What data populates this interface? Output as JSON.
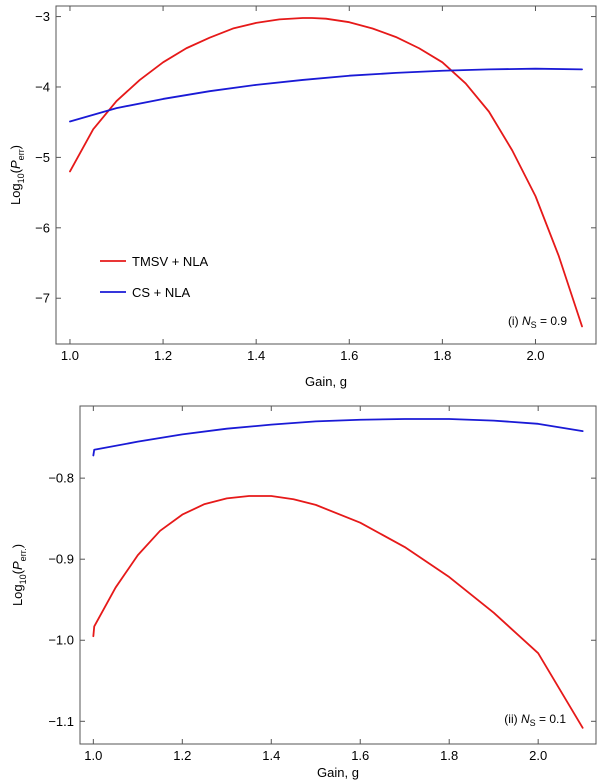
{
  "chart_data": [
    {
      "type": "line",
      "panel": "top",
      "xlabel": "Gain, g",
      "ylabel": {
        "base": "Log",
        "sub": "10",
        "paren_open": "(",
        "var": "P",
        "var_sub": "err",
        "paren_close": ")"
      },
      "xlim": [
        0.97,
        2.13
      ],
      "ylim": [
        -7.65,
        -2.85
      ],
      "xticks": [
        1.0,
        1.2,
        1.4,
        1.6,
        1.8,
        2.0
      ],
      "xtick_labels": [
        "1.0",
        "1.2",
        "1.4",
        "1.6",
        "1.8",
        "2.0"
      ],
      "yticks": [
        -3,
        -4,
        -5,
        -6,
        -7
      ],
      "ytick_labels": [
        "−3",
        "−4",
        "−5",
        "−6",
        "−7"
      ],
      "annotation": {
        "prefix": "(i)",
        "var": "N",
        "var_sub": "S",
        "value": " = 0.9"
      },
      "legend": {
        "placement": "center-left"
      },
      "series": [
        {
          "name": "TMSV + NLA",
          "color": "#e61919",
          "x": [
            1.0,
            1.05,
            1.1,
            1.15,
            1.2,
            1.25,
            1.3,
            1.35,
            1.4,
            1.45,
            1.5,
            1.52,
            1.55,
            1.6,
            1.65,
            1.7,
            1.75,
            1.8,
            1.85,
            1.9,
            1.95,
            2.0,
            2.05,
            2.1
          ],
          "y": [
            -5.2,
            -4.6,
            -4.2,
            -3.9,
            -3.65,
            -3.45,
            -3.3,
            -3.17,
            -3.09,
            -3.04,
            -3.02,
            -3.02,
            -3.03,
            -3.08,
            -3.17,
            -3.29,
            -3.45,
            -3.65,
            -3.95,
            -4.35,
            -4.9,
            -5.55,
            -6.4,
            -7.4
          ]
        },
        {
          "name": "CS + NLA",
          "color": "#1a1ad6",
          "x": [
            1.0,
            1.1,
            1.2,
            1.3,
            1.4,
            1.5,
            1.6,
            1.7,
            1.8,
            1.9,
            2.0,
            2.1
          ],
          "y": [
            -4.49,
            -4.3,
            -4.17,
            -4.06,
            -3.97,
            -3.9,
            -3.84,
            -3.8,
            -3.77,
            -3.75,
            -3.74,
            -3.75
          ]
        }
      ]
    },
    {
      "type": "line",
      "panel": "bottom",
      "xlabel": "Gain, g",
      "ylabel": {
        "base": "Log",
        "sub": "10",
        "paren_open": "(",
        "var": "P",
        "var_sub": "err.",
        "paren_close": ")"
      },
      "xlim": [
        0.97,
        2.13
      ],
      "ylim": [
        -1.128,
        -0.711
      ],
      "xticks": [
        1.0,
        1.2,
        1.4,
        1.6,
        1.8,
        2.0
      ],
      "xtick_labels": [
        "1.0",
        "1.2",
        "1.4",
        "1.6",
        "1.8",
        "2.0"
      ],
      "yticks": [
        -0.8,
        -0.9,
        -1.0,
        -1.1
      ],
      "ytick_labels": [
        "−0.8",
        "−0.9",
        "−1.0",
        "−1.1"
      ],
      "annotation": {
        "prefix": "(ii)",
        "var": "N",
        "var_sub": "S",
        "value": " = 0.1"
      },
      "series": [
        {
          "color": "#e61919",
          "x": [
            1.0,
            1.002,
            1.05,
            1.1,
            1.15,
            1.2,
            1.25,
            1.3,
            1.35,
            1.4,
            1.45,
            1.5,
            1.6,
            1.7,
            1.8,
            1.9,
            2.0,
            2.1
          ],
          "y": [
            -0.995,
            -0.983,
            -0.935,
            -0.895,
            -0.865,
            -0.845,
            -0.832,
            -0.825,
            -0.822,
            -0.822,
            -0.826,
            -0.833,
            -0.855,
            -0.885,
            -0.922,
            -0.966,
            -1.016,
            -1.108
          ]
        },
        {
          "color": "#1a1ad6",
          "x": [
            1.0,
            1.002,
            1.1,
            1.2,
            1.3,
            1.4,
            1.5,
            1.6,
            1.7,
            1.8,
            1.9,
            2.0,
            2.1
          ],
          "y": [
            -0.772,
            -0.765,
            -0.755,
            -0.746,
            -0.739,
            -0.734,
            -0.73,
            -0.728,
            -0.727,
            -0.727,
            -0.729,
            -0.733,
            -0.742
          ]
        }
      ]
    }
  ]
}
